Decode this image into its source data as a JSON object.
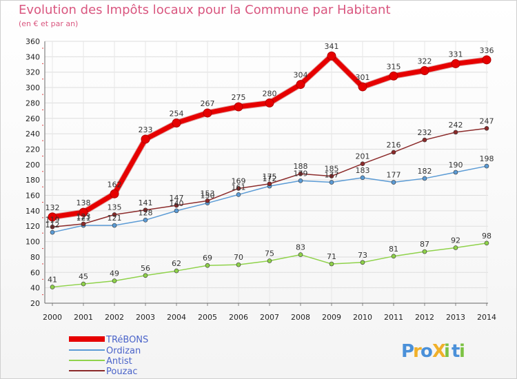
{
  "title": "Evolution des Impôts locaux pour la Commune par Habitant",
  "subtitle": "(en € et par an)",
  "chart_data": {
    "type": "line",
    "title": "Evolution des Impôts locaux pour la Commune par Habitant",
    "ylabel": "(en € et par an)",
    "xlabel": "",
    "x": [
      "2000",
      "2001",
      "2002",
      "2003",
      "2004",
      "2005",
      "2006",
      "2007",
      "2008",
      "2009",
      "2010",
      "2011",
      "2012",
      "2013",
      "2014"
    ],
    "ylim": [
      20,
      360
    ],
    "yticks": [
      20,
      40,
      60,
      80,
      100,
      120,
      140,
      160,
      180,
      200,
      220,
      240,
      260,
      280,
      300,
      320,
      340,
      360
    ],
    "grid": true,
    "legend": "bottom-left",
    "series": [
      {
        "name": "TRéBONS",
        "color": "#e60000",
        "values": [
          132,
          138,
          162,
          233,
          254,
          267,
          275,
          280,
          304,
          341,
          301,
          315,
          322,
          331,
          336
        ]
      },
      {
        "name": "Ordizan",
        "color": "#5b9bd5",
        "values": [
          112,
          121,
          121,
          128,
          140,
          150,
          161,
          172,
          179,
          177,
          183,
          177,
          182,
          190,
          198
        ]
      },
      {
        "name": "Antist",
        "color": "#8fd24a",
        "values": [
          41,
          45,
          49,
          56,
          62,
          69,
          70,
          75,
          83,
          71,
          73,
          81,
          87,
          92,
          98
        ]
      },
      {
        "name": "Pouzac",
        "color": "#8b2a2a",
        "values": [
          119,
          123,
          135,
          141,
          147,
          153,
          169,
          175,
          188,
          185,
          201,
          216,
          232,
          242,
          247
        ]
      }
    ]
  },
  "logo": {
    "text": "ProXiti",
    "letters": [
      "P",
      "r",
      "o",
      "X",
      "i",
      "t",
      "i"
    ],
    "colors": [
      "#4a90d9",
      "#f0b02a",
      "#4a90d9",
      "#f0b02a",
      "#7cc243",
      "#4a90d9",
      "#7cc243"
    ]
  }
}
